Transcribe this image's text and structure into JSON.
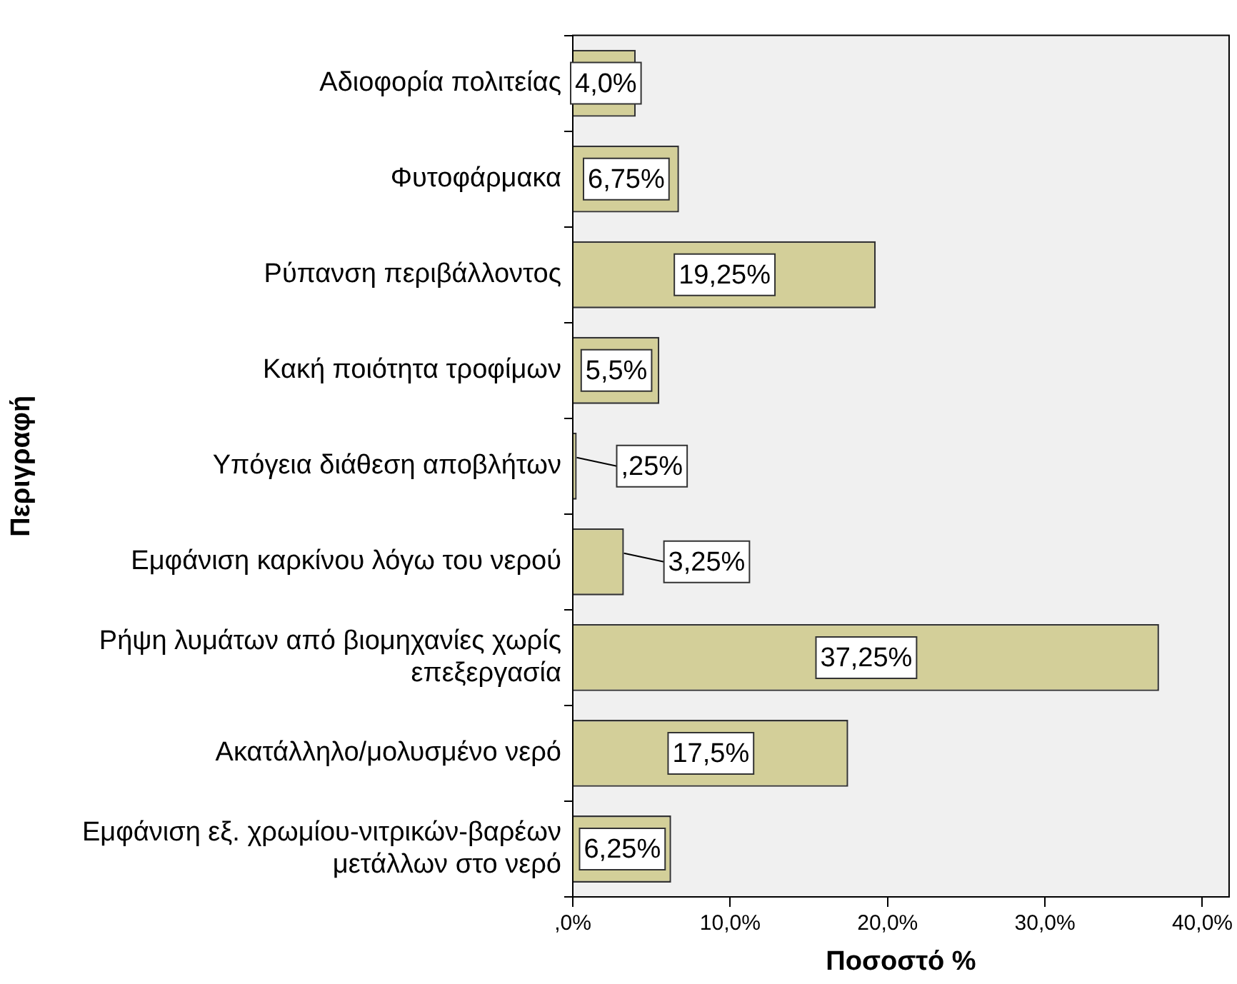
{
  "chart_data": {
    "type": "bar",
    "orientation": "horizontal",
    "xlabel": "Ποσοστό %",
    "ylabel": "Περιγραφή",
    "categories": [
      "Αδιοφορία πολιτείας",
      "Φυτοφάρμακα",
      "Ρύπανση περιβάλλοντος",
      "Κακή ποιότητα τροφίμων",
      "Υπόγεια διάθεση αποβλήτων",
      "Εμφάνιση καρκίνου λόγω του νερού",
      "Ρήψη λυμάτων από βιομηχανίες χωρίς\nεπεξεργασία",
      "Ακατάλληλο/μολυσμένο νερό",
      "Εμφάνιση εξ. χρωμίου-νιτρικών-βαρέων\nμετάλλων στο νερό"
    ],
    "values": [
      4.0,
      6.75,
      19.25,
      5.5,
      0.25,
      3.25,
      37.25,
      17.5,
      6.25
    ],
    "value_labels": [
      "4,0%",
      "6,75%",
      "19,25%",
      "5,5%",
      ",25%",
      "3,25%",
      "37,25%",
      "17,5%",
      "6,25%"
    ],
    "color": "#d3cf99",
    "xlim": [
      0,
      41.7
    ],
    "xticks": [
      {
        "value": 0,
        "label": ",0%"
      },
      {
        "value": 10,
        "label": "10,0%"
      },
      {
        "value": 20,
        "label": "20,0%"
      },
      {
        "value": 30,
        "label": "30,0%"
      },
      {
        "value": 40,
        "label": "40,0%"
      }
    ]
  }
}
